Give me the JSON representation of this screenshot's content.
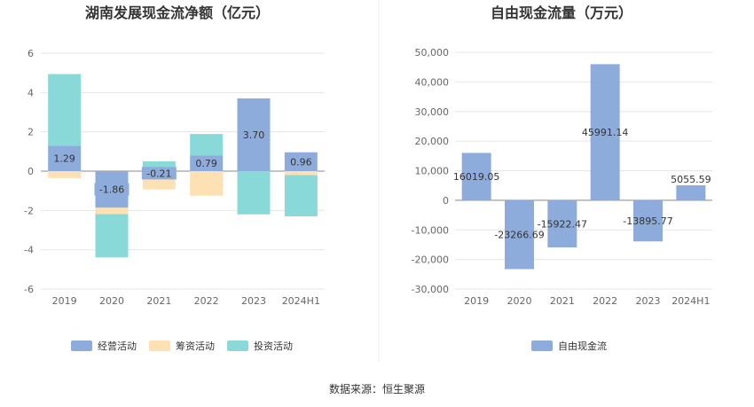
{
  "source": "数据来源：恒生聚源",
  "colors": {
    "operating": "#8eacdb",
    "financing": "#fde0b3",
    "investing": "#8ad9d9",
    "fcf": "#8eacdb"
  },
  "chart_data": [
    {
      "type": "bar",
      "stacked": true,
      "title": "湖南发展现金流净额（亿元）",
      "categories": [
        "2019",
        "2020",
        "2021",
        "2022",
        "2023",
        "2024H1"
      ],
      "ylim": [
        -6,
        6
      ],
      "yticks": [
        6,
        4,
        2,
        0,
        -2,
        -4,
        -6
      ],
      "grid": true,
      "legend_position": "bottom",
      "series": [
        {
          "name": "经营活动",
          "values": [
            1.29,
            -1.86,
            -0.21,
            0.79,
            3.7,
            0.96
          ],
          "labels": [
            "1.29",
            "-1.86",
            "-0.21",
            "0.79",
            "3.70",
            "0.96"
          ]
        },
        {
          "name": "筹资活动",
          "values": [
            -0.35,
            -0.33,
            -0.72,
            -1.25,
            0,
            -0.2
          ]
        },
        {
          "name": "投资活动",
          "values": [
            3.65,
            -2.2,
            0.5,
            1.1,
            -2.2,
            -2.1
          ]
        }
      ]
    },
    {
      "type": "bar",
      "title": "自由现金流量（万元）",
      "categories": [
        "2019",
        "2020",
        "2021",
        "2022",
        "2023",
        "2024H1"
      ],
      "ylim": [
        -30000,
        50000
      ],
      "yticks": [
        "50,000",
        "40,000",
        "30,000",
        "20,000",
        "10,000",
        "0",
        "-10,000",
        "-20,000",
        "-30,000"
      ],
      "grid": true,
      "legend_position": "bottom",
      "series": [
        {
          "name": "自由现金流",
          "values": [
            16019.05,
            -23266.69,
            -15922.47,
            45991.14,
            -13895.77,
            5055.59
          ],
          "labels": [
            "16019.05",
            "-23266.69",
            "-15922.47",
            "45991.14",
            "-13895.77",
            "5055.59"
          ]
        }
      ]
    }
  ]
}
